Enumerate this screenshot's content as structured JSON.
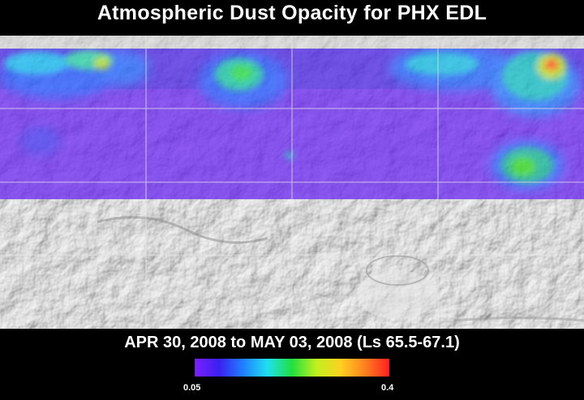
{
  "title": "Atmospheric Dust Opacity for PHX EDL",
  "date_range": "APR 30, 2008 to MAY 03, 2008 (Ls 65.5-67.1)",
  "colorbar": {
    "min_label": "0.05",
    "max_label": "0.4",
    "stops": [
      "#7a20ff",
      "#3a20f0",
      "#2080ff",
      "#20e0f0",
      "#20e040",
      "#c0f020",
      "#ffd020",
      "#ff8020",
      "#ff2020"
    ]
  },
  "colors": {
    "background": "#000000",
    "terrain": "#cfcfcf",
    "grid": "#e6e6e6"
  },
  "map": {
    "projection": "cylindrical",
    "coverage_band": "northern latitudes",
    "terrain_icon": "mars-relief-shading"
  }
}
